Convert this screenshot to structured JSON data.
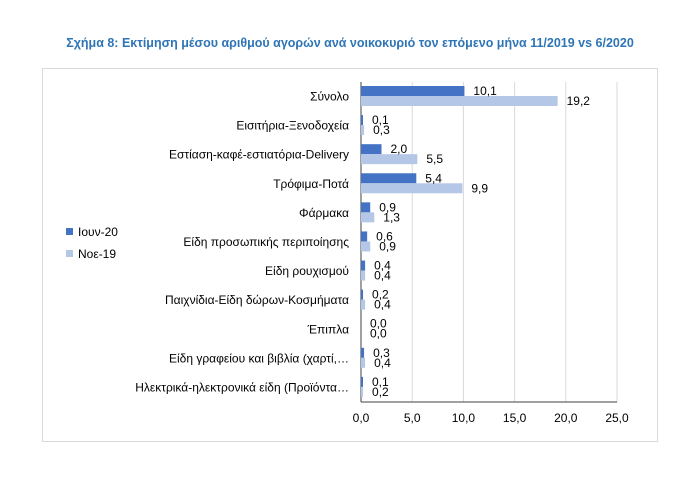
{
  "chart_data": {
    "type": "bar",
    "orientation": "horizontal",
    "title": "Σχήμα 8: Εκτίμηση μέσου αριθμού αγορών ανά νοικοκυριό τον επόμενο μήνα 11/2019 vs 6/2020",
    "categories": [
      "Σύνολο",
      "Εισιτήρια-Ξενοδοχεία",
      "Εστίαση-καφέ-εστιατόρια-Delivery",
      "Τρόφιμα-Ποτά",
      "Φάρμακα",
      "Είδη προσωπικής περιποίησης",
      "Είδη ρουχισμού",
      "Παιχνίδια-Είδη δώρων-Κοσμήματα",
      "Έπιπλα",
      "Είδη γραφείου και βιβλία (χαρτί,…",
      "Ηλεκτρικά-ηλεκτρονικά είδη (Προϊόντα…"
    ],
    "series": [
      {
        "name": "Ιουν-20",
        "color": "#4472c4",
        "values": [
          10.1,
          0.1,
          2.0,
          5.4,
          0.9,
          0.6,
          0.4,
          0.2,
          0.0,
          0.3,
          0.1
        ],
        "labels": [
          "10,1",
          "0,1",
          "2,0",
          "5,4",
          "0,9",
          "0,6",
          "0,4",
          "0,2",
          "0,0",
          "0,3",
          "0,1"
        ]
      },
      {
        "name": "Νοε-19",
        "color": "#b4c7e7",
        "values": [
          19.2,
          0.3,
          5.5,
          9.9,
          1.3,
          0.9,
          0.4,
          0.4,
          0.0,
          0.4,
          0.2
        ],
        "labels": [
          "19,2",
          "0,3",
          "5,5",
          "9,9",
          "1,3",
          "0,9",
          "0,4",
          "0,4",
          "0,0",
          "0,4",
          "0,2"
        ]
      }
    ],
    "xlim": [
      0,
      25
    ],
    "ticks": [
      0,
      5,
      10,
      15,
      20,
      25
    ],
    "tick_labels": [
      "0,0",
      "5,0",
      "10,0",
      "15,0",
      "20,0",
      "25,0"
    ],
    "grid": true,
    "legend_position": "left"
  }
}
